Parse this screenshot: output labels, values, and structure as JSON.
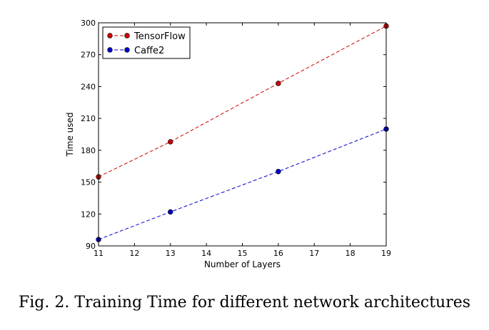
{
  "caption": "Fig. 2.  Training Time for different network architectures",
  "chart_data": {
    "type": "line",
    "title": "",
    "xlabel": "Number of Layers",
    "ylabel": "Time used",
    "xlim": [
      11,
      19
    ],
    "ylim": [
      90,
      300
    ],
    "xticks": [
      11,
      12,
      13,
      14,
      15,
      16,
      17,
      18,
      19
    ],
    "yticks": [
      90,
      120,
      150,
      180,
      210,
      240,
      270,
      300
    ],
    "grid": false,
    "legend_position": "top-left",
    "series": [
      {
        "name": "TensorFlow",
        "color": "#cc0000",
        "line_style": "dashed",
        "marker": "circle",
        "x": [
          11,
          13,
          16,
          19
        ],
        "y": [
          155,
          188,
          243,
          297
        ]
      },
      {
        "name": "Caffe2",
        "color": "#0000cc",
        "line_style": "dashed",
        "marker": "circle",
        "x": [
          11,
          13,
          16,
          19
        ],
        "y": [
          96,
          122,
          160,
          200
        ]
      }
    ]
  }
}
